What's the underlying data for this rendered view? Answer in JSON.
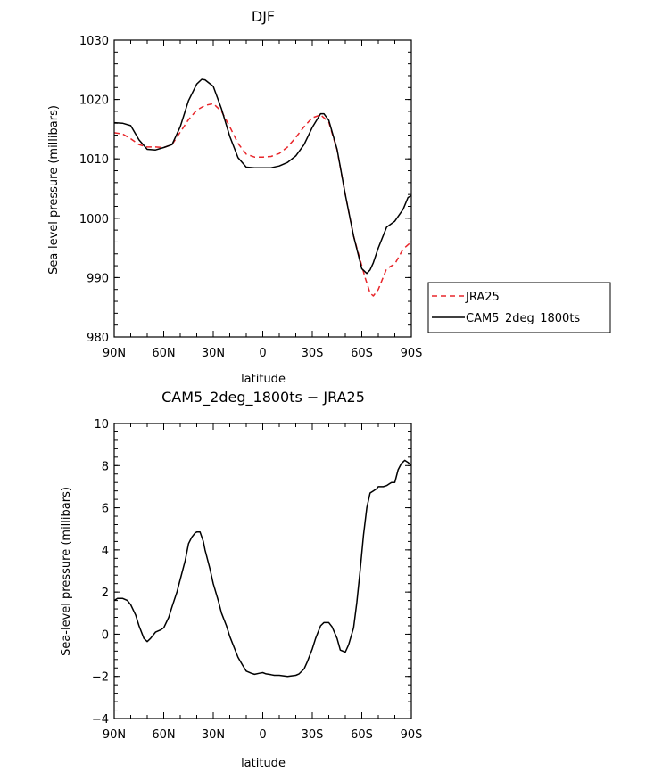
{
  "chart_data": [
    {
      "type": "line",
      "title": "DJF",
      "xlabel": "latitude",
      "ylabel": "Sea-level pressure (millibars)",
      "xlim": [
        90,
        -90
      ],
      "ylim": [
        980,
        1030
      ],
      "xticks": [
        90,
        60,
        30,
        0,
        -30,
        -60,
        -90
      ],
      "xtick_labels": [
        "90N",
        "60N",
        "30N",
        "0",
        "30S",
        "60S",
        "90S"
      ],
      "yticks": [
        980,
        990,
        1000,
        1010,
        1020,
        1030
      ],
      "ytick_labels": [
        "980",
        "990",
        "1000",
        "1010",
        "1020",
        "1030"
      ],
      "legend_position": "right, outside plot",
      "series": [
        {
          "name": "JRA25",
          "color": "#e8262b",
          "dash": "dashed",
          "x": [
            90,
            85,
            80,
            75,
            70,
            65,
            60,
            55,
            50,
            45,
            40,
            35,
            30,
            25,
            20,
            15,
            10,
            5,
            0,
            -5,
            -10,
            -15,
            -20,
            -25,
            -30,
            -35,
            -40,
            -45,
            -50,
            -55,
            -60,
            -62,
            -65,
            -67,
            -70,
            -75,
            -80,
            -85,
            -90
          ],
          "values": [
            1014.4,
            1014.2,
            1013.4,
            1012.4,
            1012.0,
            1012.0,
            1011.9,
            1012.4,
            1014.5,
            1016.6,
            1018.2,
            1019.0,
            1019.3,
            1018.0,
            1015.4,
            1012.6,
            1010.8,
            1010.3,
            1010.3,
            1010.4,
            1010.9,
            1012.0,
            1013.6,
            1015.4,
            1016.9,
            1017.4,
            1016.2,
            1011.5,
            1004.0,
            997.0,
            992.0,
            990.0,
            987.4,
            986.9,
            988.0,
            991.5,
            992.3,
            994.8,
            996.0
          ]
        },
        {
          "name": "CAM5_2deg_1800ts",
          "color": "#000000",
          "dash": "solid",
          "x": [
            90,
            85,
            80,
            75,
            70,
            65,
            60,
            55,
            50,
            45,
            40,
            37,
            35,
            30,
            25,
            20,
            15,
            10,
            5,
            0,
            -5,
            -10,
            -15,
            -20,
            -25,
            -30,
            -35,
            -37,
            -40,
            -45,
            -50,
            -55,
            -60,
            -63,
            -65,
            -67,
            -70,
            -75,
            -80,
            -85,
            -88,
            -90
          ],
          "values": [
            1016.1,
            1016.0,
            1015.6,
            1013.2,
            1011.6,
            1011.5,
            1011.9,
            1012.4,
            1015.4,
            1019.8,
            1022.6,
            1023.4,
            1023.3,
            1022.2,
            1018.4,
            1013.8,
            1010.2,
            1008.6,
            1008.5,
            1008.5,
            1008.5,
            1008.8,
            1009.4,
            1010.5,
            1012.4,
            1015.3,
            1017.6,
            1017.6,
            1016.5,
            1011.6,
            1004.0,
            997.0,
            991.5,
            990.7,
            991.3,
            992.5,
            995.0,
            998.5,
            999.5,
            1001.5,
            1003.5,
            1003.8
          ]
        }
      ]
    },
    {
      "type": "line",
      "title": "CAM5_2deg_1800ts − JRA25",
      "xlabel": "latitude",
      "ylabel": "Sea-level pressure (millibars)",
      "xlim": [
        90,
        -90
      ],
      "ylim": [
        -4,
        10
      ],
      "xticks": [
        90,
        60,
        30,
        0,
        -30,
        -60,
        -90
      ],
      "xtick_labels": [
        "90N",
        "60N",
        "30N",
        "0",
        "30S",
        "60S",
        "90S"
      ],
      "yticks": [
        -4,
        -2,
        0,
        2,
        4,
        6,
        8,
        10
      ],
      "ytick_labels": [
        "−4",
        "−2",
        "0",
        "2",
        "4",
        "6",
        "8",
        "10"
      ],
      "series": [
        {
          "color": "#000000",
          "dash": "solid",
          "x": [
            90,
            88,
            85,
            82,
            80,
            77,
            75,
            72,
            70,
            68,
            65,
            62,
            60,
            57,
            55,
            52,
            50,
            47,
            45,
            43,
            41,
            40,
            38,
            36,
            35,
            32,
            30,
            27,
            25,
            22,
            20,
            17,
            15,
            12,
            10,
            7,
            5,
            2,
            0,
            -2,
            -5,
            -7,
            -10,
            -12,
            -15,
            -17,
            -20,
            -22,
            -25,
            -27,
            -30,
            -32,
            -35,
            -37,
            -40,
            -42,
            -45,
            -47,
            -50,
            -52,
            -55,
            -57,
            -59,
            -61,
            -63,
            -65,
            -67,
            -69,
            -70,
            -73,
            -75,
            -77,
            -78,
            -80,
            -82,
            -84,
            -86,
            -88,
            -90
          ],
          "values": [
            1.6,
            1.7,
            1.7,
            1.6,
            1.4,
            0.9,
            0.4,
            -0.2,
            -0.35,
            -0.2,
            0.1,
            0.2,
            0.3,
            0.8,
            1.3,
            2.0,
            2.6,
            3.5,
            4.3,
            4.6,
            4.8,
            4.85,
            4.85,
            4.4,
            4.0,
            3.1,
            2.4,
            1.6,
            1.0,
            0.4,
            -0.1,
            -0.7,
            -1.1,
            -1.5,
            -1.75,
            -1.85,
            -1.9,
            -1.85,
            -1.82,
            -1.88,
            -1.92,
            -1.95,
            -1.95,
            -1.97,
            -2.0,
            -1.98,
            -1.95,
            -1.88,
            -1.65,
            -1.3,
            -0.7,
            -0.2,
            0.4,
            0.55,
            0.55,
            0.35,
            -0.2,
            -0.75,
            -0.85,
            -0.5,
            0.3,
            1.5,
            3.0,
            4.7,
            6.0,
            6.7,
            6.8,
            6.9,
            7.0,
            7.0,
            7.05,
            7.15,
            7.2,
            7.2,
            7.8,
            8.1,
            8.25,
            8.15,
            8.0
          ]
        }
      ]
    }
  ]
}
